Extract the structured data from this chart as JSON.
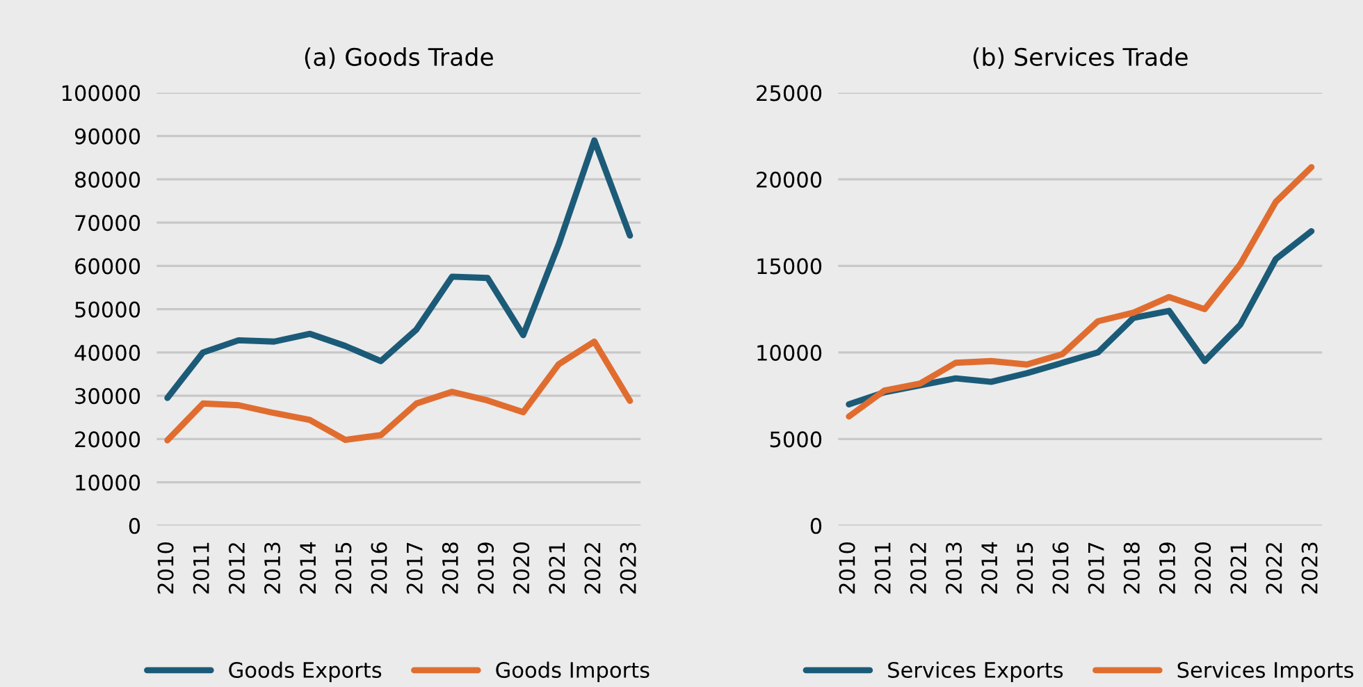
{
  "chart_data": [
    {
      "type": "line",
      "title": "(a) Goods Trade",
      "categories": [
        "2010",
        "2011",
        "2012",
        "2013",
        "2014",
        "2015",
        "2016",
        "2017",
        "2018",
        "2019",
        "2020",
        "2021",
        "2022",
        "2023"
      ],
      "series": [
        {
          "name": "Goods Exports",
          "color": "#1b5b78",
          "values": [
            29500,
            40000,
            42800,
            42500,
            44300,
            41500,
            38000,
            45300,
            57500,
            57200,
            44000,
            65000,
            89000,
            67000
          ]
        },
        {
          "name": "Goods Imports",
          "color": "#e06d2f",
          "values": [
            19700,
            28200,
            27800,
            26000,
            24400,
            19800,
            20900,
            28200,
            30900,
            28900,
            26200,
            37300,
            42500,
            28800
          ]
        }
      ],
      "ylim": [
        0,
        100000
      ],
      "yticks": [
        0,
        10000,
        20000,
        30000,
        40000,
        50000,
        60000,
        70000,
        80000,
        90000,
        100000
      ],
      "grid": "y",
      "legend": "bottom",
      "marker": "none",
      "line_style": "solid"
    },
    {
      "type": "line",
      "title": "(b) Services Trade",
      "categories": [
        "2010",
        "2011",
        "2012",
        "2013",
        "2014",
        "2015",
        "2016",
        "2017",
        "2018",
        "2019",
        "2020",
        "2021",
        "2022",
        "2023"
      ],
      "series": [
        {
          "name": "Services Exports",
          "color": "#1b5b78",
          "values": [
            7000,
            7700,
            8100,
            8500,
            8300,
            8800,
            9400,
            10000,
            12000,
            12400,
            9500,
            11600,
            15400,
            17000
          ]
        },
        {
          "name": "Services Imports",
          "color": "#e06d2f",
          "values": [
            6300,
            7800,
            8200,
            9400,
            9500,
            9300,
            9900,
            11800,
            12300,
            13200,
            12500,
            15100,
            18700,
            20700
          ]
        }
      ],
      "ylim": [
        0,
        25000
      ],
      "yticks": [
        0,
        5000,
        10000,
        15000,
        20000,
        25000
      ],
      "grid": "y",
      "legend": "bottom",
      "marker": "none",
      "line_style": "solid"
    }
  ]
}
